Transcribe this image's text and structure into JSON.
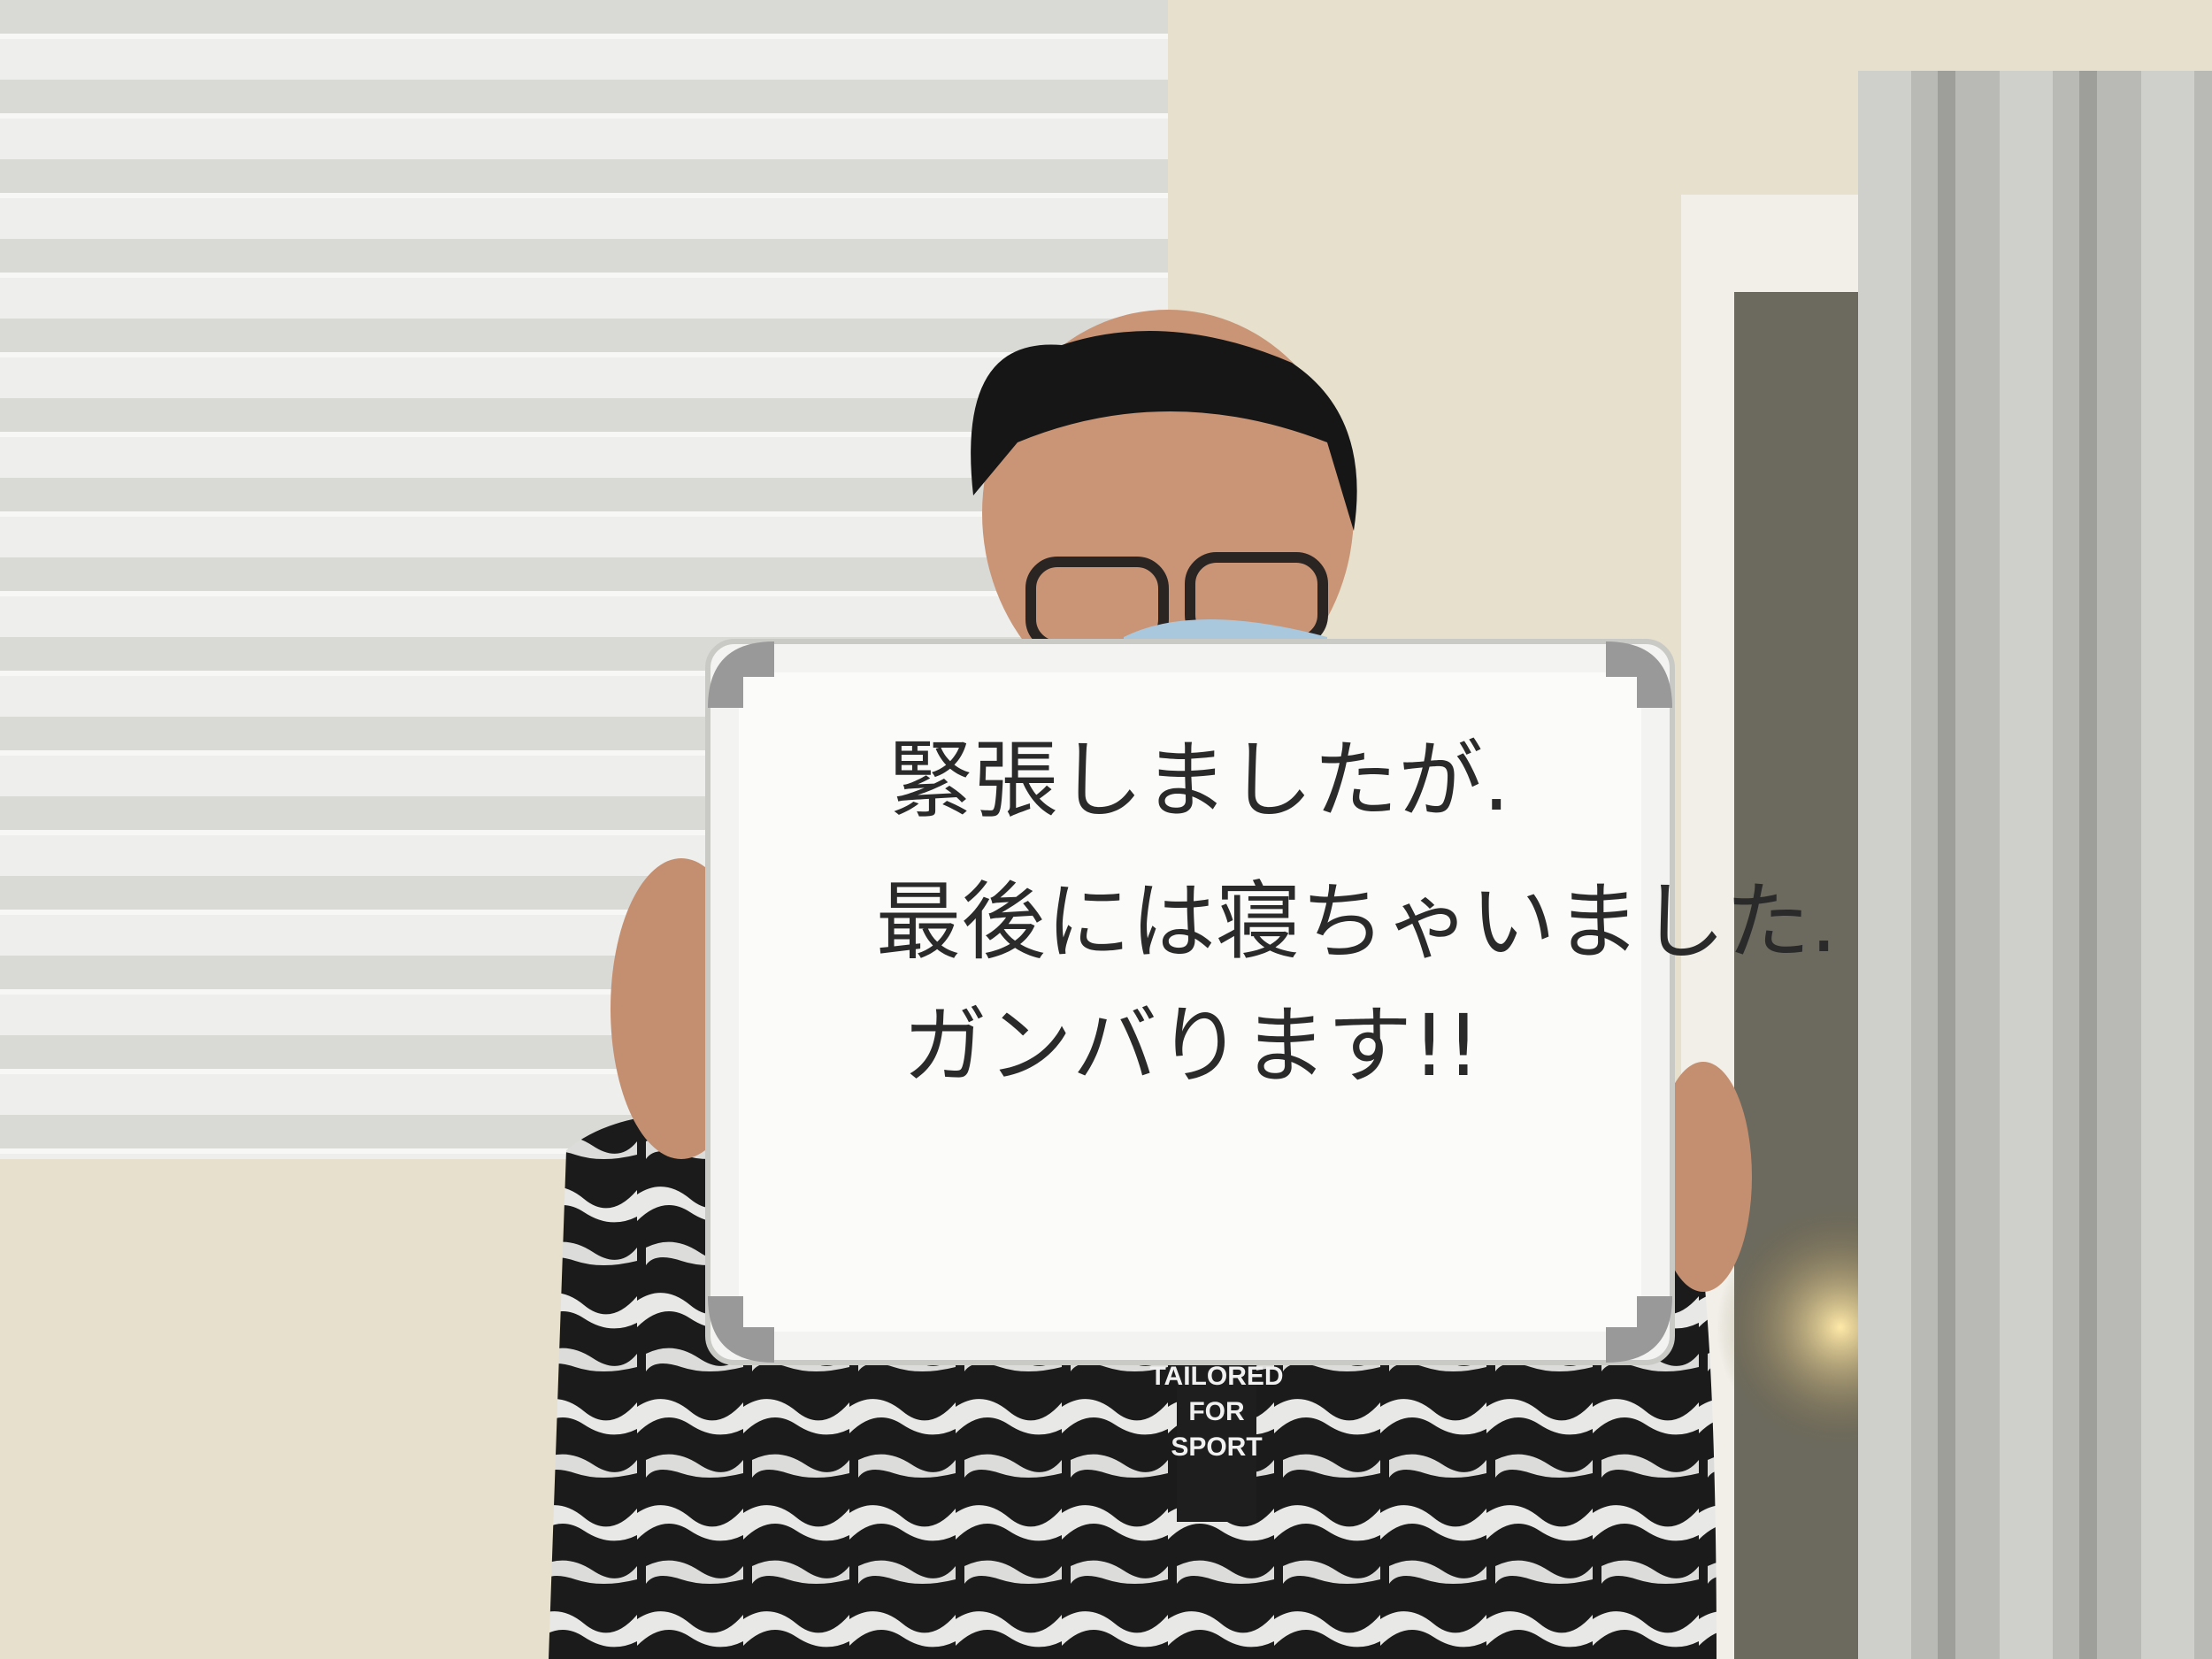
{
  "whiteboard": {
    "lines": [
      "緊張しましたが.",
      "最後には寝ちゃいました.",
      "ガンバります!!"
    ]
  },
  "jacket": {
    "lines": [
      "TAILORED",
      "FOR",
      "SPORT"
    ]
  }
}
